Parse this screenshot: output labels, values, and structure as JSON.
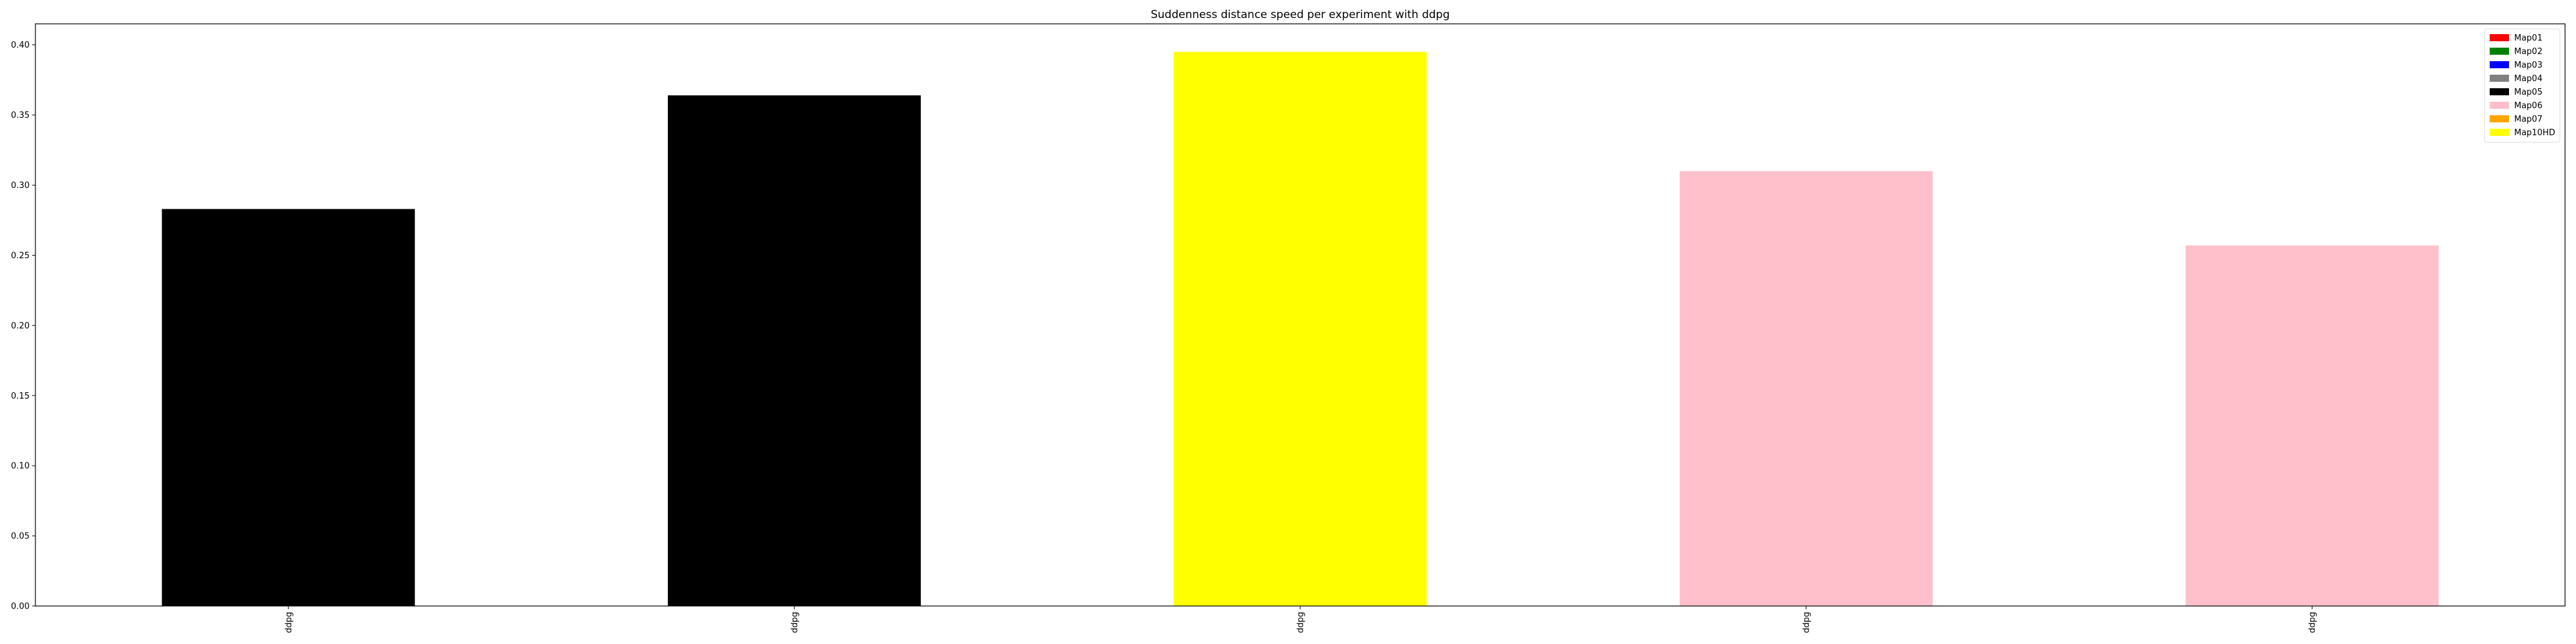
{
  "chart_data": {
    "type": "bar",
    "title": "Suddenness distance speed per experiment with ddpg",
    "xlabel": "",
    "ylabel": "",
    "categories": [
      "ddpg",
      "ddpg",
      "ddpg",
      "ddpg",
      "ddpg"
    ],
    "values": [
      0.283,
      0.364,
      0.395,
      0.31,
      0.257
    ],
    "bar_colors": [
      "#000000",
      "#000000",
      "#ffff00",
      "#ffc0cb",
      "#ffc0cb"
    ],
    "ylim": [
      0,
      0.415
    ],
    "yticks": [
      "0.00",
      "0.05",
      "0.10",
      "0.15",
      "0.20",
      "0.25",
      "0.30",
      "0.35",
      "0.40"
    ],
    "grid": false,
    "legend_position": "top-right",
    "legend": [
      {
        "label": "Map01",
        "color": "#ff0000"
      },
      {
        "label": "Map02",
        "color": "#008000"
      },
      {
        "label": "Map03",
        "color": "#0000ff"
      },
      {
        "label": "Map04",
        "color": "#808080"
      },
      {
        "label": "Map05",
        "color": "#000000"
      },
      {
        "label": "Map06",
        "color": "#ffc0cb"
      },
      {
        "label": "Map07",
        "color": "#ffa500"
      },
      {
        "label": "Map10HD",
        "color": "#ffff00"
      }
    ]
  }
}
